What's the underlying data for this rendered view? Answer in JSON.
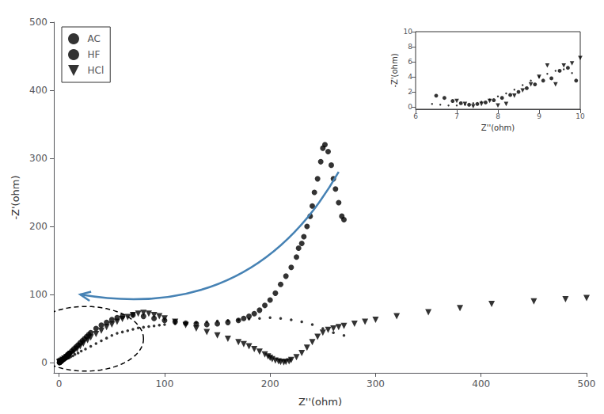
{
  "chart_data": [
    {
      "type": "scatter",
      "xlabel": "Z''(ohm)",
      "ylabel": "-Z'(ohm)",
      "xlim": [
        -5,
        500
      ],
      "ylim": [
        -15,
        500
      ],
      "xticks": [
        0,
        100,
        200,
        300,
        400,
        500
      ],
      "yticks": [
        0,
        100,
        200,
        300,
        400,
        500
      ],
      "grid": false,
      "legend": "upper left",
      "series": [
        {
          "name": "AC",
          "color": "black",
          "marker": "circle",
          "x": [
            0.3,
            0.5,
            0.7,
            1.0,
            1.3,
            1.6,
            2.0,
            2.5,
            3.0,
            3.5,
            4.0,
            4.5,
            5.0,
            5.5,
            6.0,
            6.5,
            7.0,
            7.5,
            8.0,
            8.5,
            9.0,
            9.5,
            10.0,
            12,
            14,
            16,
            18,
            20,
            22,
            24,
            26,
            28,
            30,
            35,
            40,
            45,
            50,
            55,
            60,
            70,
            80,
            90,
            100,
            110,
            120,
            130,
            140,
            150,
            160,
            170,
            175,
            180,
            185,
            190,
            195,
            200,
            205,
            210,
            215,
            220,
            225,
            227,
            230,
            232,
            235,
            238,
            240,
            242,
            245,
            248,
            250,
            252,
            255,
            258,
            260,
            262,
            265,
            268,
            270
          ],
          "y": [
            0.2,
            0.4,
            0.6,
            0.9,
            1.2,
            1.6,
            2.1,
            2.8,
            3.5,
            4.2,
            5.0,
            5.8,
            6.5,
            7.2,
            8.0,
            8.8,
            9.5,
            10.2,
            11.0,
            11.8,
            12.5,
            13.2,
            14.0,
            17,
            20,
            23,
            26,
            29,
            32,
            35,
            38,
            41,
            44,
            50,
            55,
            59,
            63,
            66,
            68,
            70,
            68,
            65,
            62,
            60,
            58,
            57,
            56,
            57,
            59,
            62,
            65,
            68,
            72,
            77,
            84,
            92,
            102,
            115,
            127,
            140,
            155,
            168,
            175,
            185,
            200,
            215,
            230,
            250,
            270,
            295,
            315,
            320,
            310,
            290,
            270,
            255,
            235,
            215,
            210
          ]
        },
        {
          "name": "HF",
          "color": "black",
          "marker": "dot",
          "x": [
            0.2,
            0.4,
            0.6,
            0.9,
            1.2,
            1.6,
            2.0,
            2.5,
            3.0,
            3.8,
            4.5,
            5.5,
            6.5,
            7.5,
            8.5,
            9.5,
            11,
            13,
            15,
            18,
            21,
            25,
            30,
            35,
            40,
            45,
            50,
            55,
            60,
            65,
            70,
            75,
            80,
            85,
            90,
            95,
            100,
            110,
            120,
            130,
            140,
            150,
            160,
            170,
            180,
            190,
            200,
            210,
            220,
            230,
            240,
            250,
            260,
            270
          ],
          "y": [
            0.1,
            0.2,
            0.3,
            0.5,
            0.7,
            0.9,
            1.2,
            1.5,
            2.0,
            2.6,
            3.2,
            4.0,
            5.0,
            5.8,
            6.5,
            7.2,
            8.5,
            10,
            12,
            14,
            17,
            20,
            24,
            28,
            32,
            36,
            40,
            43,
            45,
            47,
            49,
            51,
            52,
            53,
            54,
            55,
            56,
            57,
            58,
            59,
            60,
            61,
            62,
            63,
            64,
            65,
            66,
            65,
            63,
            60,
            56,
            50,
            44,
            40
          ]
        },
        {
          "name": "HCl",
          "color": "black",
          "marker": "triangle-down",
          "x": [
            0.2,
            0.5,
            0.8,
            1.2,
            1.8,
            2.5,
            3.5,
            5.0,
            7.0,
            9.0,
            11,
            14,
            17,
            20,
            23,
            27,
            30,
            35,
            40,
            45,
            50,
            55,
            60,
            65,
            70,
            75,
            80,
            85,
            90,
            95,
            100,
            110,
            120,
            130,
            140,
            150,
            160,
            170,
            175,
            180,
            185,
            190,
            195,
            198,
            200,
            202,
            205,
            208,
            210,
            213,
            215,
            218,
            220,
            225,
            230,
            235,
            240,
            245,
            250,
            255,
            260,
            265,
            270,
            280,
            290,
            300,
            320,
            350,
            380,
            410,
            450,
            480,
            500
          ],
          "y": [
            0.3,
            0.6,
            1.0,
            1.5,
            2.2,
            3.0,
            4.2,
            5.8,
            8.0,
            10,
            13,
            16,
            20,
            24,
            28,
            33,
            37,
            42,
            47,
            52,
            56,
            60,
            64,
            67,
            70,
            72,
            73,
            72,
            70,
            68,
            65,
            60,
            55,
            50,
            45,
            40,
            35,
            30,
            27,
            24,
            20,
            16,
            12,
            9,
            7,
            5,
            3,
            2,
            1,
            0.5,
            1,
            2,
            4,
            8,
            14,
            22,
            30,
            38,
            44,
            48,
            50,
            52,
            54,
            57,
            60,
            63,
            68,
            74,
            80,
            86,
            90,
            93,
            95
          ]
        }
      ],
      "ellipse": {
        "center": [
          25,
          35
        ],
        "width": 110,
        "height": 95,
        "color": "black",
        "line_style": "dashed"
      },
      "arrow": {
        "start": [
          265,
          280
        ],
        "end": [
          20,
          100
        ],
        "color": "steelblue"
      }
    },
    {
      "type": "scatter",
      "xlabel": "Z''(ohm)",
      "ylabel": "-Z'(ohm)",
      "xlim": [
        6,
        10
      ],
      "ylim": [
        -0.3,
        10
      ],
      "xticks": [
        6,
        7,
        8,
        9,
        10
      ],
      "yticks": [
        0,
        2,
        4,
        6,
        8,
        10
      ],
      "grid": false,
      "series": [
        {
          "color": "black",
          "marker": "circle",
          "x": [
            6.5,
            6.7,
            6.9,
            7.1,
            7.3,
            7.5,
            7.7,
            7.9,
            8.1,
            8.3,
            8.5,
            8.7,
            8.9,
            9.1,
            9.3,
            9.5,
            9.7,
            9.9
          ],
          "y": [
            1.5,
            1.2,
            0.8,
            0.5,
            0.3,
            0.4,
            0.6,
            0.9,
            1.2,
            1.6,
            2.0,
            2.5,
            3.0,
            3.5,
            3.8,
            4.8,
            5.2,
            3.5
          ]
        },
        {
          "color": "black",
          "marker": "dot",
          "x": [
            6.4,
            6.6,
            6.8,
            7.0,
            7.2,
            7.4,
            7.6,
            7.8,
            8.0,
            8.2,
            8.4,
            8.6,
            8.8,
            9.0,
            9.2,
            9.4,
            9.6,
            9.8
          ],
          "y": [
            0.4,
            0.3,
            0.2,
            0.2,
            0.3,
            0.5,
            0.7,
            1.0,
            1.4,
            1.8,
            2.3,
            2.9,
            3.5,
            4.0,
            4.4,
            4.8,
            5.0,
            4.5
          ]
        },
        {
          "color": "black",
          "marker": "triangle-down",
          "x": [
            7.0,
            7.2,
            7.4,
            7.6,
            7.8,
            8.0,
            8.2,
            8.4,
            8.6,
            8.8,
            9.0,
            9.2,
            9.4,
            9.6,
            9.8,
            10.0
          ],
          "y": [
            0.8,
            0.4,
            0.1,
            0.4,
            0.8,
            0.2,
            0.4,
            1.5,
            2.2,
            3.0,
            4.0,
            5.5,
            3.0,
            5.5,
            5.8,
            6.5
          ]
        }
      ]
    }
  ]
}
